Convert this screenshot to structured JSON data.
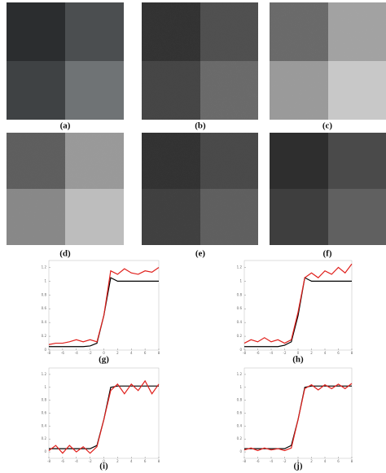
{
  "panels": {
    "labels": [
      "(a)",
      "(b)",
      "(c)",
      "(d)",
      "(e)",
      "(f)"
    ]
  },
  "chart_data": [
    {
      "type": "line",
      "title": "(g)",
      "x": [
        -8,
        -7,
        -6,
        -5,
        -4,
        -3,
        -2,
        -1,
        0,
        1,
        2,
        3,
        4,
        5,
        6,
        7,
        8
      ],
      "xlim": [
        -8,
        8
      ],
      "xticks": [
        -8,
        -6,
        -4,
        -2,
        0,
        2,
        4,
        6,
        8
      ],
      "ylim": [
        0,
        1.3
      ],
      "yticks": [
        0,
        0.2,
        0.4,
        0.6,
        0.8,
        1,
        1.2
      ],
      "series": [
        {
          "color": "#000000",
          "values": [
            0.05,
            0.05,
            0.05,
            0.05,
            0.05,
            0.05,
            0.06,
            0.1,
            0.5,
            1.05,
            1.0,
            1.0,
            1.0,
            1.0,
            1.0,
            1.0,
            1.0
          ]
        },
        {
          "color": "#e0201c",
          "values": [
            0.08,
            0.1,
            0.1,
            0.12,
            0.15,
            0.12,
            0.15,
            0.12,
            0.5,
            1.15,
            1.1,
            1.18,
            1.12,
            1.1,
            1.15,
            1.13,
            1.2
          ]
        }
      ]
    },
    {
      "type": "line",
      "title": "(h)",
      "x": [
        -8,
        -7,
        -6,
        -5,
        -4,
        -3,
        -2,
        -1,
        0,
        1,
        2,
        3,
        4,
        5,
        6,
        7,
        8
      ],
      "xlim": [
        -8,
        8
      ],
      "xticks": [
        -8,
        -6,
        -4,
        -2,
        0,
        2,
        4,
        6,
        8
      ],
      "ylim": [
        0,
        1.3
      ],
      "yticks": [
        0,
        0.2,
        0.4,
        0.6,
        0.8,
        1,
        1.2
      ],
      "series": [
        {
          "color": "#000000",
          "values": [
            0.05,
            0.05,
            0.05,
            0.05,
            0.05,
            0.05,
            0.07,
            0.12,
            0.5,
            1.05,
            1.0,
            1.0,
            1.0,
            1.0,
            1.0,
            1.0,
            1.0
          ]
        },
        {
          "color": "#e0201c",
          "values": [
            0.1,
            0.15,
            0.12,
            0.18,
            0.12,
            0.15,
            0.1,
            0.15,
            0.55,
            1.05,
            1.12,
            1.05,
            1.15,
            1.1,
            1.2,
            1.12,
            1.25
          ]
        }
      ]
    },
    {
      "type": "line",
      "title": "(i)",
      "x": [
        -8,
        -7,
        -6,
        -5,
        -4,
        -3,
        -2,
        -1,
        0,
        1,
        2,
        3,
        4,
        5,
        6,
        7,
        8
      ],
      "xlim": [
        -8,
        8
      ],
      "xticks": [
        -8,
        -6,
        -4,
        -2,
        0,
        2,
        4,
        6,
        8
      ],
      "ylim": [
        -0.1,
        1.3
      ],
      "yticks": [
        0,
        0.2,
        0.4,
        0.6,
        0.8,
        1,
        1.2
      ],
      "series": [
        {
          "color": "#000000",
          "values": [
            0.05,
            0.05,
            0.05,
            0.05,
            0.05,
            0.05,
            0.05,
            0.1,
            0.5,
            1.0,
            1.02,
            1.02,
            1.02,
            1.02,
            1.02,
            1.02,
            1.02
          ]
        },
        {
          "color": "#e0201c",
          "values": [
            0.02,
            0.1,
            -0.02,
            0.1,
            0.0,
            0.08,
            -0.02,
            0.08,
            0.5,
            0.95,
            1.05,
            0.9,
            1.05,
            0.95,
            1.1,
            0.9,
            1.05
          ]
        }
      ]
    },
    {
      "type": "line",
      "title": "(j)",
      "x": [
        -8,
        -7,
        -6,
        -5,
        -4,
        -3,
        -2,
        -1,
        0,
        1,
        2,
        3,
        4,
        5,
        6,
        7,
        8
      ],
      "xlim": [
        -8,
        8
      ],
      "xticks": [
        -8,
        -6,
        -4,
        -2,
        0,
        2,
        4,
        6,
        8
      ],
      "ylim": [
        -0.1,
        1.3
      ],
      "yticks": [
        0,
        0.2,
        0.4,
        0.6,
        0.8,
        1,
        1.2
      ],
      "series": [
        {
          "color": "#000000",
          "values": [
            0.05,
            0.05,
            0.05,
            0.05,
            0.05,
            0.05,
            0.05,
            0.1,
            0.5,
            1.0,
            1.02,
            1.02,
            1.02,
            1.02,
            1.02,
            1.02,
            1.02
          ]
        },
        {
          "color": "#e0201c",
          "values": [
            0.03,
            0.06,
            0.02,
            0.06,
            0.03,
            0.05,
            0.02,
            0.06,
            0.5,
            0.98,
            1.04,
            0.96,
            1.04,
            0.98,
            1.05,
            0.98,
            1.06
          ]
        }
      ]
    }
  ]
}
